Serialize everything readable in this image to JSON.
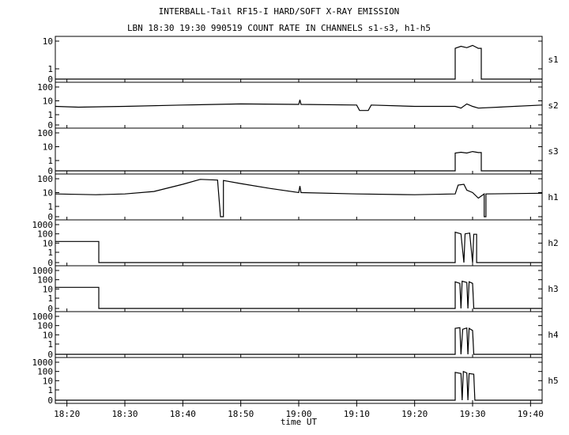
{
  "header": {
    "title": "INTERBALL-Tail RF15-I HARD/SOFT X-RAY EMISSION",
    "subtitle": "LBN 18:30 19:30 990519  COUNT RATE IN CHANNELS s1-s3, h1-h5"
  },
  "chart_data": {
    "type": "line",
    "xlabel": "time UT",
    "x_range": [
      "18:18",
      "19:42"
    ],
    "x_ticks": [
      "18:20",
      "18:30",
      "18:40",
      "18:50",
      "19:00",
      "19:10",
      "19:20",
      "19:30",
      "19:40"
    ],
    "panels": [
      {
        "name": "s1",
        "y_ticks": [
          "10",
          "1",
          "0"
        ],
        "points": [
          [
            "18:18",
            0
          ],
          [
            "19:27",
            0
          ],
          [
            "19:27",
            5.5
          ],
          [
            "19:28",
            6.5
          ],
          [
            "19:29",
            5.8
          ],
          [
            "19:30",
            7
          ],
          [
            "19:31",
            5.5
          ],
          [
            "19:31.5",
            5.5
          ],
          [
            "19:31.5",
            0
          ],
          [
            "19:42",
            0
          ]
        ]
      },
      {
        "name": "s2",
        "y_ticks": [
          "100",
          "10",
          "1",
          "0"
        ],
        "points": [
          [
            "18:18",
            4
          ],
          [
            "18:22",
            3.5
          ],
          [
            "18:30",
            4
          ],
          [
            "18:40",
            5
          ],
          [
            "18:50",
            6
          ],
          [
            "19:00",
            5.5
          ],
          [
            "19:00.2",
            12
          ],
          [
            "19:00.4",
            5.5
          ],
          [
            "19:10",
            5
          ],
          [
            "19:10.5",
            2
          ],
          [
            "19:12",
            2
          ],
          [
            "19:12.5",
            5
          ],
          [
            "19:20",
            4
          ],
          [
            "19:27",
            4
          ],
          [
            "19:28",
            3
          ],
          [
            "19:29",
            6
          ],
          [
            "19:30",
            4
          ],
          [
            "19:31",
            3
          ],
          [
            "19:42",
            5
          ]
        ]
      },
      {
        "name": "s3",
        "y_ticks": [
          "100",
          "10",
          "1",
          "0"
        ],
        "points": [
          [
            "18:18",
            0
          ],
          [
            "19:27",
            0
          ],
          [
            "19:27",
            3.5
          ],
          [
            "19:28",
            4
          ],
          [
            "19:29",
            3.5
          ],
          [
            "19:30",
            4.5
          ],
          [
            "19:31",
            3.8
          ],
          [
            "19:31.5",
            3.8
          ],
          [
            "19:31.5",
            0
          ],
          [
            "19:42",
            0
          ]
        ]
      },
      {
        "name": "h1",
        "y_ticks": [
          "100",
          "10",
          "1",
          "0"
        ],
        "points": [
          [
            "18:18",
            8
          ],
          [
            "18:25",
            7
          ],
          [
            "18:30",
            8
          ],
          [
            "18:35",
            12
          ],
          [
            "18:40",
            40
          ],
          [
            "18:43",
            90
          ],
          [
            "18:46",
            80
          ],
          [
            "18:46.5",
            0
          ],
          [
            "18:47",
            0
          ],
          [
            "18:47",
            75
          ],
          [
            "18:50",
            45
          ],
          [
            "18:55",
            20
          ],
          [
            "19:00",
            10
          ],
          [
            "19:00.2",
            30
          ],
          [
            "19:00.4",
            10
          ],
          [
            "19:10",
            8
          ],
          [
            "19:20",
            7
          ],
          [
            "19:27",
            8
          ],
          [
            "19:27.5",
            35
          ],
          [
            "19:28.5",
            40
          ],
          [
            "19:29",
            15
          ],
          [
            "19:30",
            10
          ],
          [
            "19:31",
            4
          ],
          [
            "19:32",
            8
          ],
          [
            "19:32",
            0
          ],
          [
            "19:32.3",
            0
          ],
          [
            "19:32.3",
            8
          ],
          [
            "19:42",
            9
          ]
        ]
      },
      {
        "name": "h2",
        "y_ticks": [
          "1000",
          "100",
          "10",
          "1",
          "0"
        ],
        "points": [
          [
            "18:18",
            15
          ],
          [
            "18:25.5",
            15
          ],
          [
            "18:25.5",
            0
          ],
          [
            "19:27",
            0
          ],
          [
            "19:27",
            150
          ],
          [
            "19:28",
            100
          ],
          [
            "19:28.5",
            0
          ],
          [
            "19:28.7",
            100
          ],
          [
            "19:29.5",
            120
          ],
          [
            "19:30",
            0
          ],
          [
            "19:30.2",
            90
          ],
          [
            "19:30.7",
            90
          ],
          [
            "19:30.7",
            0
          ],
          [
            "19:42",
            0
          ]
        ]
      },
      {
        "name": "h3",
        "y_ticks": [
          "1000",
          "100",
          "10",
          "1",
          "0"
        ],
        "points": [
          [
            "18:18",
            15
          ],
          [
            "18:25.5",
            15
          ],
          [
            "18:25.5",
            0
          ],
          [
            "19:27",
            0
          ],
          [
            "19:27",
            60
          ],
          [
            "19:27.8",
            40
          ],
          [
            "19:28",
            0
          ],
          [
            "19:28.2",
            70
          ],
          [
            "19:29",
            50
          ],
          [
            "19:29.2",
            0
          ],
          [
            "19:29.4",
            60
          ],
          [
            "19:30",
            40
          ],
          [
            "19:30.2",
            0
          ],
          [
            "19:42",
            0
          ]
        ]
      },
      {
        "name": "h4",
        "y_ticks": [
          "1000",
          "100",
          "10",
          "1",
          "0"
        ],
        "points": [
          [
            "18:18",
            0
          ],
          [
            "19:27",
            0
          ],
          [
            "19:27",
            50
          ],
          [
            "19:27.8",
            60
          ],
          [
            "19:28",
            0
          ],
          [
            "19:28.3",
            40
          ],
          [
            "19:29",
            55
          ],
          [
            "19:29.2",
            0
          ],
          [
            "19:29.4",
            50
          ],
          [
            "19:30",
            30
          ],
          [
            "19:30.2",
            0
          ],
          [
            "19:42",
            0
          ]
        ]
      },
      {
        "name": "h5",
        "y_ticks": [
          "1000",
          "100",
          "10",
          "1",
          "0"
        ],
        "points": [
          [
            "18:18",
            0
          ],
          [
            "19:27",
            0
          ],
          [
            "19:27",
            80
          ],
          [
            "19:28",
            60
          ],
          [
            "19:28.2",
            0
          ],
          [
            "19:28.4",
            100
          ],
          [
            "19:29",
            70
          ],
          [
            "19:29.2",
            0
          ],
          [
            "19:29.4",
            60
          ],
          [
            "19:30.2",
            50
          ],
          [
            "19:30.4",
            0
          ],
          [
            "19:42",
            0
          ]
        ]
      }
    ]
  }
}
